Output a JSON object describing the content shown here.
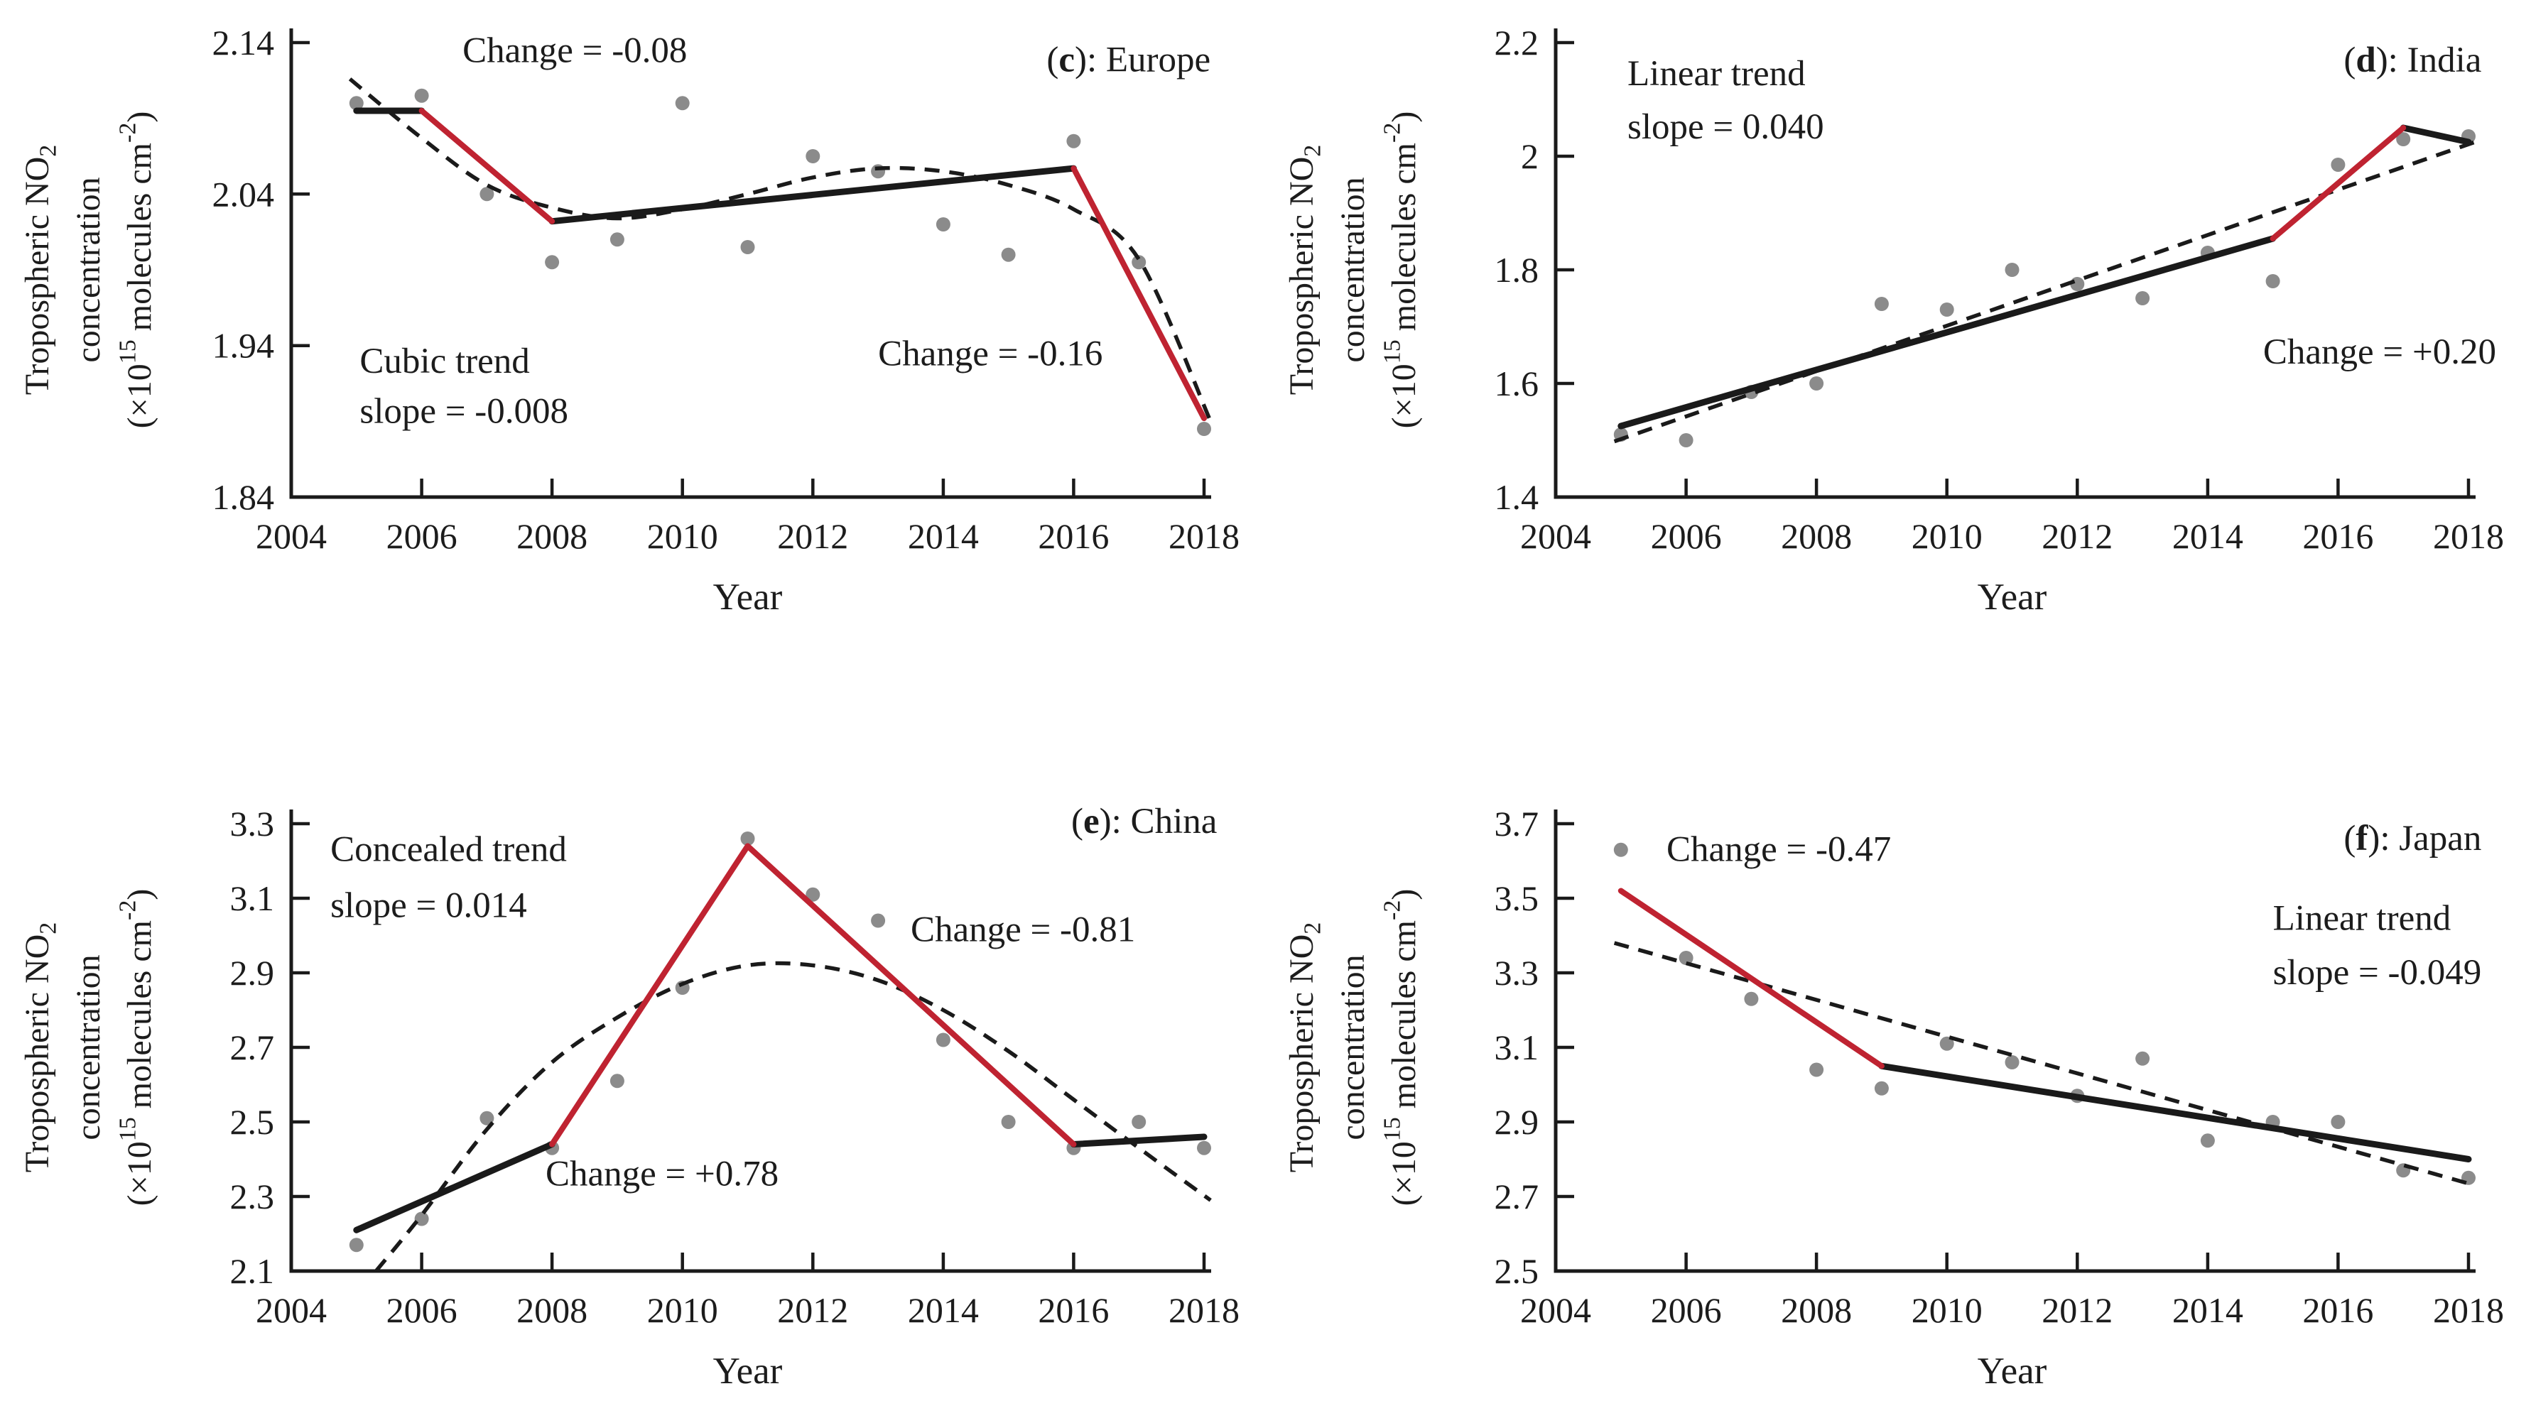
{
  "figure": {
    "background": "#ffffff",
    "x_axis_title": "Year",
    "y_axis_title_lines": [
      [
        {
          "t": "Tropospheric NO"
        },
        {
          "t": "2",
          "sub": true
        }
      ],
      [
        {
          "t": "concentration"
        }
      ],
      [
        {
          "t": "(×10"
        },
        {
          "t": "15",
          "sup": true
        },
        {
          "t": " molecules cm"
        },
        {
          "t": "-2",
          "sup": true
        },
        {
          "t": ")"
        }
      ]
    ],
    "colors": {
      "scatter_point": "#8b8b8b",
      "trend_line": "#1a1a1a",
      "abrupt_change_line": "#bf2331",
      "fitted_curve": "#1a1a1a",
      "axis": "#1a1a1a",
      "text": "#1c1c1c"
    }
  },
  "chart_data": [
    {
      "type": "scatter",
      "panel": "c",
      "region": "Europe",
      "panel_label": {
        "segments": [
          {
            "t": "("
          },
          {
            "t": "c",
            "b": true
          },
          {
            "t": "): Europe"
          }
        ],
        "x": 2018.1,
        "y": 2.121,
        "anchor": "end"
      },
      "x_axis": {
        "min": 2004,
        "max": 2018,
        "ticks": [
          {
            "v": 2004,
            "label": "2004"
          },
          {
            "v": 2006,
            "label": "2006"
          },
          {
            "v": 2008,
            "label": "2008"
          },
          {
            "v": 2010,
            "label": "2010"
          },
          {
            "v": 2012,
            "label": "2012"
          },
          {
            "v": 2014,
            "label": "2014"
          },
          {
            "v": 2016,
            "label": "2016"
          },
          {
            "v": 2018,
            "label": "2018"
          }
        ]
      },
      "y_axis": {
        "min": 1.84,
        "max": 2.14,
        "ticks": [
          {
            "v": 2.14,
            "label": "2.14"
          },
          {
            "v": 2.04,
            "label": "2.04"
          },
          {
            "v": 1.94,
            "label": "1.94"
          },
          {
            "v": 1.84,
            "label": "1.84"
          }
        ]
      },
      "points": [
        [
          2005,
          2.1
        ],
        [
          2006,
          2.105
        ],
        [
          2007,
          2.04
        ],
        [
          2008,
          1.995
        ],
        [
          2009,
          2.01
        ],
        [
          2010,
          2.1
        ],
        [
          2011,
          2.005
        ],
        [
          2012,
          2.065
        ],
        [
          2013,
          2.055
        ],
        [
          2014,
          2.02
        ],
        [
          2015,
          2.0
        ],
        [
          2016,
          2.075
        ],
        [
          2017,
          1.995
        ],
        [
          2018,
          1.885
        ]
      ],
      "trend_segments": [
        [
          [
            2005,
            2.095
          ],
          [
            2006,
            2.095
          ]
        ],
        [
          [
            2008,
            2.022
          ],
          [
            2016,
            2.057
          ]
        ]
      ],
      "abrupt_change_segments": [
        [
          [
            2006,
            2.095
          ],
          [
            2008,
            2.022
          ]
        ],
        [
          [
            2016,
            2.057
          ],
          [
            2018,
            1.892
          ]
        ]
      ],
      "fitted_curve": [
        [
          2004.9,
          2.116
        ],
        [
          2006,
          2.077
        ],
        [
          2007,
          2.046
        ],
        [
          2008,
          2.031
        ],
        [
          2009,
          2.024
        ],
        [
          2010,
          2.03
        ],
        [
          2011,
          2.04
        ],
        [
          2012,
          2.051
        ],
        [
          2013,
          2.057
        ],
        [
          2014,
          2.055
        ],
        [
          2015,
          2.046
        ],
        [
          2016,
          2.03
        ],
        [
          2017,
          1.997
        ],
        [
          2018.1,
          1.89
        ]
      ],
      "annotations": [
        {
          "text": "Change = -0.08",
          "x": 2008.35,
          "y": 2.127,
          "anchor": "middle"
        },
        {
          "text": "Cubic trend",
          "x": 2005.05,
          "y": 1.922,
          "anchor": "start"
        },
        {
          "text": "slope = -0.008",
          "x": 2005.05,
          "y": 1.889,
          "anchor": "start"
        },
        {
          "text": "Change = -0.16",
          "x": 2013.0,
          "y": 1.927,
          "anchor": "start"
        }
      ]
    },
    {
      "type": "scatter",
      "panel": "d",
      "region": "India",
      "panel_label": {
        "segments": [
          {
            "t": "("
          },
          {
            "t": "d",
            "b": true
          },
          {
            "t": "): India"
          }
        ],
        "x": 2018.2,
        "y": 2.149,
        "anchor": "end"
      },
      "x_axis": {
        "min": 2004,
        "max": 2018,
        "ticks": [
          {
            "v": 2004,
            "label": "2004"
          },
          {
            "v": 2006,
            "label": "2006"
          },
          {
            "v": 2008,
            "label": "2008"
          },
          {
            "v": 2010,
            "label": "2010"
          },
          {
            "v": 2012,
            "label": "2012"
          },
          {
            "v": 2014,
            "label": "2014"
          },
          {
            "v": 2016,
            "label": "2016"
          },
          {
            "v": 2018,
            "label": "2018"
          }
        ]
      },
      "y_axis": {
        "min": 1.4,
        "max": 2.2,
        "ticks": [
          {
            "v": 2.2,
            "label": "2.2"
          },
          {
            "v": 2.0,
            "label": "2"
          },
          {
            "v": 1.8,
            "label": "1.8"
          },
          {
            "v": 1.6,
            "label": "1.6"
          },
          {
            "v": 1.4,
            "label": "1.4"
          }
        ]
      },
      "points": [
        [
          2005,
          1.51
        ],
        [
          2006,
          1.5
        ],
        [
          2007,
          1.585
        ],
        [
          2008,
          1.6
        ],
        [
          2009,
          1.74
        ],
        [
          2010,
          1.73
        ],
        [
          2011,
          1.8
        ],
        [
          2012,
          1.775
        ],
        [
          2013,
          1.75
        ],
        [
          2014,
          1.83
        ],
        [
          2015,
          1.78
        ],
        [
          2016,
          1.985
        ],
        [
          2017,
          2.03
        ],
        [
          2018,
          2.035
        ]
      ],
      "trend_segments": [
        [
          [
            2005,
            1.525
          ],
          [
            2015,
            1.855
          ]
        ],
        [
          [
            2017,
            2.05
          ],
          [
            2018,
            2.025
          ]
        ]
      ],
      "abrupt_change_segments": [
        [
          [
            2015,
            1.855
          ],
          [
            2017,
            2.05
          ]
        ]
      ],
      "fitted_curve": [
        [
          2004.9,
          1.498
        ],
        [
          2018.1,
          2.025
        ]
      ],
      "annotations": [
        {
          "text": "Linear trend",
          "x": 2005.1,
          "y": 2.125,
          "anchor": "start"
        },
        {
          "text": "slope = 0.040",
          "x": 2005.1,
          "y": 2.031,
          "anchor": "start"
        },
        {
          "text": "Change = +0.20",
          "x": 2014.85,
          "y": 1.635,
          "anchor": "start"
        }
      ]
    },
    {
      "type": "scatter",
      "panel": "e",
      "region": "China",
      "panel_label": {
        "segments": [
          {
            "t": "("
          },
          {
            "t": "e",
            "b": true
          },
          {
            "t": "): China"
          }
        ],
        "x": 2018.2,
        "y": 3.275,
        "anchor": "end"
      },
      "x_axis": {
        "min": 2004,
        "max": 2018,
        "ticks": [
          {
            "v": 2004,
            "label": "2004"
          },
          {
            "v": 2006,
            "label": "2006"
          },
          {
            "v": 2008,
            "label": "2008"
          },
          {
            "v": 2010,
            "label": "2010"
          },
          {
            "v": 2012,
            "label": "2012"
          },
          {
            "v": 2014,
            "label": "2014"
          },
          {
            "v": 2016,
            "label": "2016"
          },
          {
            "v": 2018,
            "label": "2018"
          }
        ]
      },
      "y_axis": {
        "min": 2.1,
        "max": 3.3,
        "ticks": [
          {
            "v": 3.3,
            "label": "3.3"
          },
          {
            "v": 3.1,
            "label": "3.1"
          },
          {
            "v": 2.9,
            "label": "2.9"
          },
          {
            "v": 2.7,
            "label": "2.7"
          },
          {
            "v": 2.5,
            "label": "2.5"
          },
          {
            "v": 2.3,
            "label": "2.3"
          },
          {
            "v": 2.1,
            "label": "2.1"
          }
        ]
      },
      "points": [
        [
          2005,
          2.17
        ],
        [
          2006,
          2.24
        ],
        [
          2007,
          2.51
        ],
        [
          2008,
          2.43
        ],
        [
          2009,
          2.61
        ],
        [
          2010,
          2.86
        ],
        [
          2011,
          3.26
        ],
        [
          2012,
          3.11
        ],
        [
          2013,
          3.04
        ],
        [
          2014,
          2.72
        ],
        [
          2015,
          2.5
        ],
        [
          2016,
          2.43
        ],
        [
          2017,
          2.5
        ],
        [
          2018,
          2.43
        ]
      ],
      "trend_segments": [
        [
          [
            2005,
            2.21
          ],
          [
            2008,
            2.44
          ]
        ],
        [
          [
            2016,
            2.44
          ],
          [
            2018,
            2.46
          ]
        ]
      ],
      "abrupt_change_segments": [
        [
          [
            2008,
            2.44
          ],
          [
            2011,
            3.24
          ]
        ],
        [
          [
            2011,
            3.24
          ],
          [
            2016,
            2.44
          ]
        ]
      ],
      "fitted_curve": [
        [
          2005.3,
          2.1
        ],
        [
          2006,
          2.25
        ],
        [
          2007,
          2.48
        ],
        [
          2008,
          2.66
        ],
        [
          2009,
          2.78
        ],
        [
          2010,
          2.87
        ],
        [
          2011,
          2.92
        ],
        [
          2012,
          2.92
        ],
        [
          2013,
          2.88
        ],
        [
          2014,
          2.8
        ],
        [
          2015,
          2.69
        ],
        [
          2016,
          2.56
        ],
        [
          2017,
          2.43
        ],
        [
          2018.1,
          2.29
        ]
      ],
      "annotations": [
        {
          "text": "Concealed trend",
          "x": 2004.6,
          "y": 3.2,
          "anchor": "start"
        },
        {
          "text": "slope = 0.014",
          "x": 2004.6,
          "y": 3.05,
          "anchor": "start"
        },
        {
          "text": "Change = -0.81",
          "x": 2013.5,
          "y": 2.985,
          "anchor": "start"
        },
        {
          "text": "Change = +0.78",
          "x": 2007.9,
          "y": 2.33,
          "anchor": "start"
        }
      ]
    },
    {
      "type": "scatter",
      "panel": "f",
      "region": "Japan",
      "panel_label": {
        "segments": [
          {
            "t": "("
          },
          {
            "t": "f",
            "b": true
          },
          {
            "t": "): Japan"
          }
        ],
        "x": 2018.2,
        "y": 3.63,
        "anchor": "end"
      },
      "x_axis": {
        "min": 2004,
        "max": 2018,
        "ticks": [
          {
            "v": 2004,
            "label": "2004"
          },
          {
            "v": 2006,
            "label": "2006"
          },
          {
            "v": 2008,
            "label": "2008"
          },
          {
            "v": 2010,
            "label": "2010"
          },
          {
            "v": 2012,
            "label": "2012"
          },
          {
            "v": 2014,
            "label": "2014"
          },
          {
            "v": 2016,
            "label": "2016"
          },
          {
            "v": 2018,
            "label": "2018"
          }
        ]
      },
      "y_axis": {
        "min": 2.5,
        "max": 3.7,
        "ticks": [
          {
            "v": 3.7,
            "label": "3.7"
          },
          {
            "v": 3.5,
            "label": "3.5"
          },
          {
            "v": 3.3,
            "label": "3.3"
          },
          {
            "v": 3.1,
            "label": "3.1"
          },
          {
            "v": 2.9,
            "label": "2.9"
          },
          {
            "v": 2.7,
            "label": "2.7"
          },
          {
            "v": 2.5,
            "label": "2.5"
          }
        ]
      },
      "points": [
        [
          2005,
          3.63
        ],
        [
          2006,
          3.34
        ],
        [
          2007,
          3.23
        ],
        [
          2008,
          3.04
        ],
        [
          2009,
          2.99
        ],
        [
          2010,
          3.11
        ],
        [
          2011,
          3.06
        ],
        [
          2012,
          2.97
        ],
        [
          2013,
          3.07
        ],
        [
          2014,
          2.85
        ],
        [
          2015,
          2.9
        ],
        [
          2016,
          2.9
        ],
        [
          2017,
          2.77
        ],
        [
          2018,
          2.75
        ]
      ],
      "trend_segments": [
        [
          [
            2009,
            3.05
          ],
          [
            2018,
            2.8
          ]
        ]
      ],
      "abrupt_change_segments": [
        [
          [
            2005,
            3.52
          ],
          [
            2009,
            3.05
          ]
        ]
      ],
      "fitted_curve": [
        [
          2004.9,
          3.38
        ],
        [
          2018.1,
          2.73
        ]
      ],
      "annotations": [
        {
          "text": "Change = -0.47",
          "x": 2005.7,
          "y": 3.6,
          "anchor": "start"
        },
        {
          "text": "Linear trend",
          "x": 2015.0,
          "y": 3.415,
          "anchor": "start"
        },
        {
          "text": "slope = -0.049",
          "x": 2015.0,
          "y": 3.27,
          "anchor": "start"
        }
      ]
    }
  ]
}
